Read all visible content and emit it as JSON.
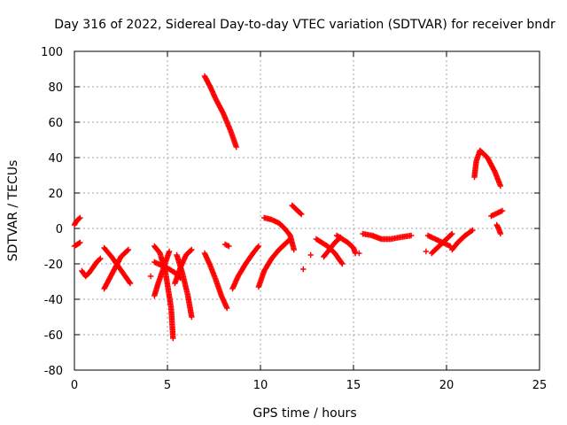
{
  "chart_data": {
    "type": "scatter",
    "title": "Day 316 of 2022, Sidereal Day-to-day VTEC variation (SDTVAR) for receiver bndr",
    "xlabel": "GPS time / hours",
    "ylabel": "SDTVAR / TECUs",
    "xlim": [
      0,
      25
    ],
    "ylim": [
      -80,
      100
    ],
    "xticks": [
      0,
      5,
      10,
      15,
      20,
      25
    ],
    "yticks": [
      -80,
      -60,
      -40,
      -20,
      0,
      20,
      40,
      60,
      80,
      100
    ],
    "grid": true,
    "marker": "+",
    "color": "#ff0000",
    "series": [
      {
        "name": "arc-0a",
        "x": [
          0.0,
          0.1,
          0.2,
          0.3
        ],
        "y": [
          2,
          4,
          5,
          6
        ]
      },
      {
        "name": "arc-0b",
        "x": [
          0.0,
          0.15,
          0.3
        ],
        "y": [
          -10,
          -9,
          -8
        ]
      },
      {
        "name": "arc-0c",
        "x": [
          0.4,
          0.6,
          0.8,
          1.0,
          1.2,
          1.4
        ],
        "y": [
          -24,
          -27,
          -25,
          -22,
          -19,
          -17
        ]
      },
      {
        "name": "arc-1a",
        "x": [
          1.6,
          1.9,
          2.2,
          2.5,
          2.9
        ],
        "y": [
          -34,
          -28,
          -22,
          -16,
          -12
        ]
      },
      {
        "name": "arc-1b",
        "x": [
          1.6,
          2.0,
          2.4,
          2.8,
          3.0
        ],
        "y": [
          -11,
          -16,
          -22,
          -28,
          -31
        ]
      },
      {
        "name": "pt-4.1",
        "x": [
          4.1
        ],
        "y": [
          -27
        ]
      },
      {
        "name": "arc-4a",
        "x": [
          4.3,
          4.6,
          4.9,
          5.2,
          5.3
        ],
        "y": [
          -10,
          -14,
          -25,
          -45,
          -62
        ]
      },
      {
        "name": "arc-4b",
        "x": [
          4.3,
          4.5,
          4.8,
          5.1
        ],
        "y": [
          -38,
          -31,
          -22,
          -13
        ]
      },
      {
        "name": "arc-4c",
        "x": [
          4.3,
          4.7,
          5.1,
          5.4,
          5.7
        ],
        "y": [
          -19,
          -21,
          -23,
          -25,
          -28
        ]
      },
      {
        "name": "arc-5a",
        "x": [
          5.4,
          5.7,
          6.0,
          6.3
        ],
        "y": [
          -31,
          -22,
          -15,
          -12
        ]
      },
      {
        "name": "arc-5b",
        "x": [
          5.5,
          5.8,
          6.1,
          6.3
        ],
        "y": [
          -15,
          -25,
          -38,
          -50
        ]
      },
      {
        "name": "arc-7a",
        "x": [
          7.0,
          7.3,
          7.6,
          8.0,
          8.4,
          8.7
        ],
        "y": [
          86,
          80,
          73,
          65,
          55,
          46
        ]
      },
      {
        "name": "arc-7b",
        "x": [
          7.0,
          7.3,
          7.6,
          7.9,
          8.2
        ],
        "y": [
          -14,
          -21,
          -29,
          -38,
          -45
        ]
      },
      {
        "name": "pt-8.2",
        "x": [
          8.1,
          8.3
        ],
        "y": [
          -9,
          -10
        ]
      },
      {
        "name": "arc-8a",
        "x": [
          8.5,
          8.8,
          9.2,
          9.6,
          9.9
        ],
        "y": [
          -34,
          -27,
          -20,
          -14,
          -10
        ]
      },
      {
        "name": "arc-10a",
        "x": [
          9.9,
          10.2,
          10.6,
          11.0,
          11.4,
          11.6
        ],
        "y": [
          -33,
          -24,
          -17,
          -12,
          -8,
          -6
        ]
      },
      {
        "name": "arc-10b",
        "x": [
          10.2,
          10.6,
          11.0,
          11.3,
          11.6,
          11.8
        ],
        "y": [
          6,
          5,
          3,
          0,
          -4,
          -12
        ]
      },
      {
        "name": "arc-11a",
        "x": [
          11.7,
          11.9,
          12.2
        ],
        "y": [
          13,
          11,
          8
        ]
      },
      {
        "name": "pt-12.3",
        "x": [
          12.3
        ],
        "y": [
          -23
        ]
      },
      {
        "name": "pt-12.7",
        "x": [
          12.7
        ],
        "y": [
          -15
        ]
      },
      {
        "name": "arc-13a",
        "x": [
          13.0,
          13.3,
          13.6,
          14.0,
          14.4
        ],
        "y": [
          -6,
          -8,
          -10,
          -14,
          -20
        ]
      },
      {
        "name": "arc-13b",
        "x": [
          13.4,
          13.7,
          14.0,
          14.3
        ],
        "y": [
          -16,
          -12,
          -8,
          -5
        ]
      },
      {
        "name": "arc-14a",
        "x": [
          14.1,
          14.4,
          14.7,
          15.0,
          15.1
        ],
        "y": [
          -4,
          -6,
          -8,
          -11,
          -14
        ]
      },
      {
        "name": "pt-15.3",
        "x": [
          15.3
        ],
        "y": [
          -14
        ]
      },
      {
        "name": "arc-15a",
        "x": [
          15.5,
          16.0,
          16.5,
          17.0,
          17.5,
          18.1
        ],
        "y": [
          -3,
          -4,
          -6,
          -6,
          -5,
          -4
        ]
      },
      {
        "name": "pt-18.9",
        "x": [
          18.9
        ],
        "y": [
          -13
        ]
      },
      {
        "name": "arc-19a",
        "x": [
          19.0,
          19.4,
          19.8,
          20.2
        ],
        "y": [
          -4,
          -6,
          -8,
          -10
        ]
      },
      {
        "name": "arc-19b",
        "x": [
          19.2,
          19.6,
          20.0,
          20.3
        ],
        "y": [
          -14,
          -10,
          -6,
          -3
        ]
      },
      {
        "name": "arc-20a",
        "x": [
          20.3,
          20.6,
          21.0,
          21.4
        ],
        "y": [
          -12,
          -8,
          -4,
          -1
        ]
      },
      {
        "name": "arc-21a",
        "x": [
          21.5,
          21.6,
          21.8,
          22.2,
          22.6,
          22.9
        ],
        "y": [
          29,
          38,
          44,
          40,
          32,
          24
        ]
      },
      {
        "name": "arc-22a",
        "x": [
          22.4,
          22.6,
          22.8,
          23.0
        ],
        "y": [
          7,
          8,
          9,
          10
        ]
      },
      {
        "name": "arc-22b",
        "x": [
          22.7,
          22.8,
          22.9
        ],
        "y": [
          2,
          0,
          -3
        ]
      }
    ]
  }
}
